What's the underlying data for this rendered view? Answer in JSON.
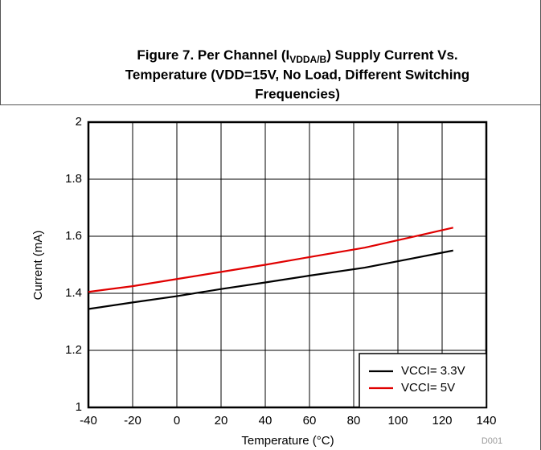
{
  "chart_data": {
    "type": "line",
    "title": [
      "Figure 7. Per Channel (I",
      "VDDA/B",
      ") Supply Current Vs.",
      "Temperature (VDD=15V, No Load, Different Switching",
      "Frequencies)"
    ],
    "x_label": "Temperature (°C)",
    "y_label": "Current (mA)",
    "note": "D001",
    "x": [
      -40,
      -20,
      0,
      20,
      40,
      60,
      85,
      105,
      125
    ],
    "series": [
      {
        "name": "VCCI= 3.3V",
        "color": "#000000",
        "values": [
          1.345,
          1.368,
          1.39,
          1.415,
          1.438,
          1.462,
          1.49,
          1.52,
          1.55
        ]
      },
      {
        "name": "VCCI= 5V",
        "color": "#e00000",
        "values": [
          1.405,
          1.425,
          1.45,
          1.475,
          1.5,
          1.527,
          1.56,
          1.595,
          1.63
        ]
      }
    ],
    "xlim": [
      -40,
      140
    ],
    "xticks": [
      -40,
      -20,
      0,
      20,
      40,
      60,
      80,
      100,
      120,
      140
    ],
    "ylim": [
      1,
      2
    ],
    "yticks": [
      1,
      1.2,
      1.4,
      1.6,
      1.8,
      2
    ],
    "grid": true,
    "legend": "lower right"
  }
}
